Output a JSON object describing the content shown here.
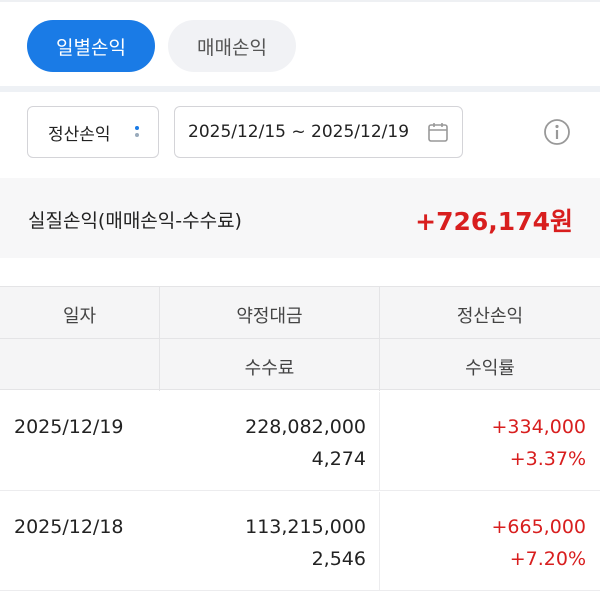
{
  "tabs": [
    "일별손익",
    "매매손익"
  ],
  "filters": {
    "type": "정산손익",
    "date_range": "2025/12/15 ~ 2025/12/19"
  },
  "summary": {
    "label": "실질손익(매매손익-수수료)",
    "value": "+726,174원"
  },
  "table": {
    "header_rows": [
      [
        "일자",
        "약정대금",
        "정산손익"
      ],
      [
        "수수료",
        "수익률"
      ]
    ],
    "rows": [
      {
        "date": "2025/12/19",
        "amount": "228,082,000",
        "fee": "4,274",
        "pnl": "+334,000",
        "rate": "+3.37%"
      },
      {
        "date": "2025/12/18",
        "amount": "113,215,000",
        "fee": "2,546",
        "pnl": "+665,000",
        "rate": "+7.20%"
      }
    ]
  }
}
